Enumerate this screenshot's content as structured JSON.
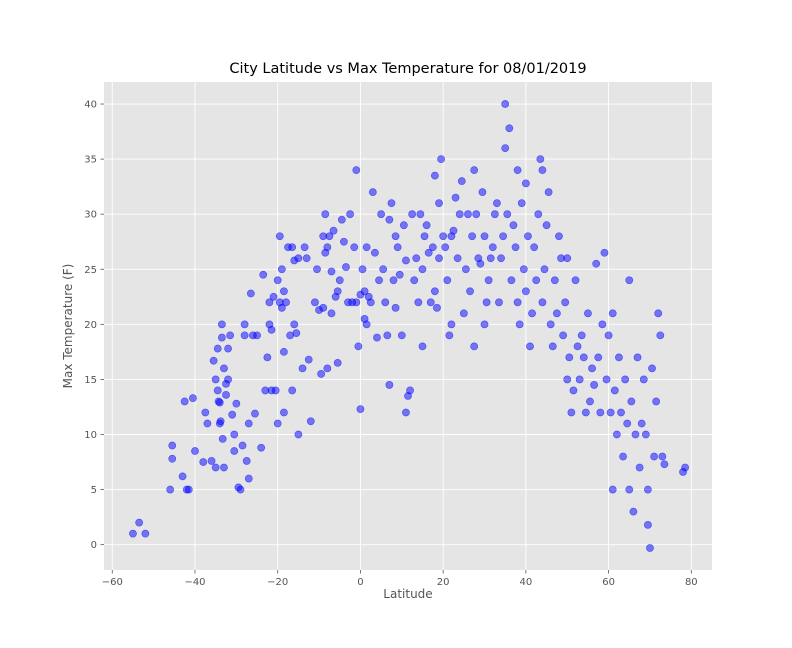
{
  "chart_data": {
    "type": "scatter",
    "title": "City Latitude vs Max Temperature for 08/01/2019",
    "xlabel": "Latitude",
    "ylabel": "Max Temperature (F)",
    "xlim": [
      -62,
      85
    ],
    "ylim": [
      -2.3,
      42
    ],
    "xticks": [
      -60,
      -40,
      -20,
      0,
      20,
      40,
      60,
      80
    ],
    "yticks": [
      0,
      5,
      10,
      15,
      20,
      25,
      30,
      35,
      40
    ],
    "grid": true,
    "legend": "none",
    "colors": {
      "point": "#0000ff",
      "background": "#e5e5e5",
      "grid": "#ffffff"
    },
    "points": [
      [
        -55,
        1
      ],
      [
        -53.5,
        2
      ],
      [
        -52,
        1
      ],
      [
        -46,
        5
      ],
      [
        -45.5,
        9
      ],
      [
        -45.5,
        7.8
      ],
      [
        -43,
        6.2
      ],
      [
        -42.5,
        13
      ],
      [
        -42,
        5
      ],
      [
        -41.5,
        5
      ],
      [
        -40.5,
        13.3
      ],
      [
        -40,
        8.5
      ],
      [
        -38,
        7.5
      ],
      [
        -37.5,
        12
      ],
      [
        -37,
        11
      ],
      [
        -36,
        7.6
      ],
      [
        -35.5,
        16.7
      ],
      [
        -35,
        15
      ],
      [
        -35,
        7
      ],
      [
        -34.5,
        17.8
      ],
      [
        -34.5,
        14
      ],
      [
        -34.3,
        13
      ],
      [
        -34,
        12.9
      ],
      [
        -34,
        11
      ],
      [
        -33.8,
        11.2
      ],
      [
        -33.5,
        18.8
      ],
      [
        -33.5,
        20
      ],
      [
        -33.3,
        9.6
      ],
      [
        -33,
        7
      ],
      [
        -33,
        16
      ],
      [
        -32.5,
        13.6
      ],
      [
        -32.5,
        14.6
      ],
      [
        -32,
        17.8
      ],
      [
        -32,
        15
      ],
      [
        -31.5,
        19
      ],
      [
        -31,
        11.8
      ],
      [
        -30.5,
        8.5
      ],
      [
        -30.5,
        10
      ],
      [
        -30,
        12.8
      ],
      [
        -29.5,
        5.2
      ],
      [
        -29,
        5
      ],
      [
        -28.5,
        9
      ],
      [
        -28,
        20
      ],
      [
        -28,
        19
      ],
      [
        -27.5,
        7.6
      ],
      [
        -27,
        11
      ],
      [
        -27,
        6
      ],
      [
        -26.5,
        22.8
      ],
      [
        -26,
        19
      ],
      [
        -25.5,
        11.9
      ],
      [
        -25,
        19
      ],
      [
        -24,
        8.8
      ],
      [
        -23.5,
        24.5
      ],
      [
        -23,
        14
      ],
      [
        -22.5,
        17
      ],
      [
        -22,
        22
      ],
      [
        -22,
        20
      ],
      [
        -21.5,
        14
      ],
      [
        -21.5,
        19.5
      ],
      [
        -21,
        22.5
      ],
      [
        -20.5,
        14
      ],
      [
        -20,
        11
      ],
      [
        -20,
        24
      ],
      [
        -19.5,
        28
      ],
      [
        -19.5,
        22
      ],
      [
        -19,
        21.5
      ],
      [
        -19,
        25
      ],
      [
        -18.5,
        17.5
      ],
      [
        -18.5,
        12
      ],
      [
        -18.5,
        23
      ],
      [
        -18,
        22
      ],
      [
        -17.5,
        27
      ],
      [
        -17,
        19
      ],
      [
        -16.5,
        14
      ],
      [
        -16.5,
        27
      ],
      [
        -16,
        25.8
      ],
      [
        -16,
        20
      ],
      [
        -15.5,
        19.2
      ],
      [
        -15,
        10
      ],
      [
        -15,
        26
      ],
      [
        -14,
        16
      ],
      [
        -13.5,
        27
      ],
      [
        -13,
        26
      ],
      [
        -12.5,
        16.8
      ],
      [
        -12,
        11.2
      ],
      [
        -11,
        22
      ],
      [
        -10.5,
        25
      ],
      [
        -10,
        21.3
      ],
      [
        -9.5,
        15.5
      ],
      [
        -9,
        21.5
      ],
      [
        -9,
        28
      ],
      [
        -8.5,
        30
      ],
      [
        -8.5,
        26.5
      ],
      [
        -8,
        27
      ],
      [
        -8,
        16
      ],
      [
        -7.5,
        28
      ],
      [
        -7,
        21
      ],
      [
        -7,
        24.8
      ],
      [
        -6.5,
        28.5
      ],
      [
        -6,
        22.5
      ],
      [
        -5.5,
        23
      ],
      [
        -5.5,
        16.5
      ],
      [
        -5,
        24
      ],
      [
        -4.5,
        29.5
      ],
      [
        -4,
        27.5
      ],
      [
        -3.5,
        25.2
      ],
      [
        -3,
        22
      ],
      [
        -2.5,
        30
      ],
      [
        -2,
        22
      ],
      [
        -1.5,
        27
      ],
      [
        -1,
        34
      ],
      [
        -1,
        22
      ],
      [
        -0.5,
        18
      ],
      [
        0,
        12.3
      ],
      [
        0,
        22.7
      ],
      [
        0.5,
        25
      ],
      [
        1,
        23
      ],
      [
        1,
        20.5
      ],
      [
        1.5,
        27
      ],
      [
        1.5,
        20
      ],
      [
        2,
        22.5
      ],
      [
        2.5,
        22
      ],
      [
        3,
        32
      ],
      [
        3.5,
        26.5
      ],
      [
        4,
        18.8
      ],
      [
        4.5,
        24
      ],
      [
        5,
        30
      ],
      [
        5.5,
        25
      ],
      [
        6,
        22
      ],
      [
        6.5,
        19
      ],
      [
        7,
        29.5
      ],
      [
        7,
        14.5
      ],
      [
        7.5,
        31
      ],
      [
        8,
        24
      ],
      [
        8.5,
        28
      ],
      [
        8.5,
        21.5
      ],
      [
        9,
        27
      ],
      [
        9.5,
        24.5
      ],
      [
        10,
        19
      ],
      [
        10.5,
        29
      ],
      [
        11,
        25.8
      ],
      [
        11,
        12
      ],
      [
        11.5,
        13.5
      ],
      [
        12,
        14
      ],
      [
        12.5,
        30
      ],
      [
        13,
        24
      ],
      [
        13.5,
        26
      ],
      [
        14,
        22
      ],
      [
        14.5,
        30
      ],
      [
        15,
        25
      ],
      [
        15,
        18
      ],
      [
        15.5,
        28
      ],
      [
        16,
        29
      ],
      [
        16.5,
        26.5
      ],
      [
        17,
        22
      ],
      [
        17.5,
        27
      ],
      [
        18,
        33.5
      ],
      [
        18,
        23
      ],
      [
        18.5,
        21.5
      ],
      [
        19,
        31
      ],
      [
        19,
        26
      ],
      [
        19.5,
        35
      ],
      [
        20,
        28
      ],
      [
        20.5,
        27
      ],
      [
        21,
        24
      ],
      [
        21.5,
        19
      ],
      [
        22,
        28
      ],
      [
        22,
        20
      ],
      [
        22.5,
        28.5
      ],
      [
        23,
        31.5
      ],
      [
        23.5,
        26
      ],
      [
        24,
        30
      ],
      [
        24.5,
        33
      ],
      [
        25,
        21
      ],
      [
        25.5,
        25
      ],
      [
        26,
        30
      ],
      [
        26.5,
        23
      ],
      [
        27,
        28
      ],
      [
        27.5,
        34
      ],
      [
        27.5,
        18
      ],
      [
        28,
        30
      ],
      [
        28.5,
        26
      ],
      [
        29,
        25.5
      ],
      [
        29.5,
        32
      ],
      [
        30,
        28
      ],
      [
        30,
        20
      ],
      [
        30.5,
        22
      ],
      [
        31,
        24
      ],
      [
        31.5,
        26
      ],
      [
        32,
        27
      ],
      [
        32.5,
        30
      ],
      [
        33,
        31
      ],
      [
        33.5,
        22
      ],
      [
        34,
        26
      ],
      [
        34.5,
        28
      ],
      [
        35,
        40
      ],
      [
        35,
        36
      ],
      [
        35.5,
        30
      ],
      [
        36,
        37.8
      ],
      [
        36.5,
        24
      ],
      [
        37,
        29
      ],
      [
        37.5,
        27
      ],
      [
        38,
        34
      ],
      [
        38,
        22
      ],
      [
        38.5,
        20
      ],
      [
        39,
        31
      ],
      [
        39.5,
        25
      ],
      [
        40,
        32.8
      ],
      [
        40,
        23
      ],
      [
        40.5,
        28
      ],
      [
        41,
        18
      ],
      [
        41.5,
        21
      ],
      [
        42,
        27
      ],
      [
        42.5,
        24
      ],
      [
        43,
        30
      ],
      [
        43.5,
        35
      ],
      [
        44,
        34
      ],
      [
        44,
        22
      ],
      [
        44.5,
        25
      ],
      [
        45,
        29
      ],
      [
        45.5,
        32
      ],
      [
        46,
        20
      ],
      [
        46.5,
        18
      ],
      [
        47,
        24
      ],
      [
        47.5,
        21
      ],
      [
        48,
        28
      ],
      [
        48.5,
        26
      ],
      [
        49,
        19
      ],
      [
        49.5,
        22
      ],
      [
        50,
        26
      ],
      [
        50,
        15
      ],
      [
        50.5,
        17
      ],
      [
        51,
        12
      ],
      [
        51.5,
        14
      ],
      [
        52,
        24
      ],
      [
        52.5,
        18
      ],
      [
        53,
        15
      ],
      [
        53.5,
        19
      ],
      [
        54,
        17
      ],
      [
        54.5,
        12
      ],
      [
        55,
        21
      ],
      [
        55.5,
        13
      ],
      [
        56,
        16
      ],
      [
        56.5,
        14.5
      ],
      [
        57,
        25.5
      ],
      [
        57.5,
        17
      ],
      [
        58,
        12
      ],
      [
        58.5,
        20
      ],
      [
        59,
        26.5
      ],
      [
        59.5,
        15
      ],
      [
        60,
        19
      ],
      [
        60.5,
        12
      ],
      [
        61,
        21
      ],
      [
        61,
        5
      ],
      [
        61.5,
        14
      ],
      [
        62,
        10
      ],
      [
        62.5,
        17
      ],
      [
        63,
        12
      ],
      [
        63.5,
        8
      ],
      [
        64,
        15
      ],
      [
        64.5,
        11
      ],
      [
        65,
        5
      ],
      [
        65,
        24
      ],
      [
        65.5,
        13
      ],
      [
        66,
        3
      ],
      [
        66.5,
        10
      ],
      [
        67,
        17
      ],
      [
        67.5,
        7
      ],
      [
        68,
        11
      ],
      [
        68.5,
        15
      ],
      [
        69,
        10
      ],
      [
        69.5,
        5
      ],
      [
        69.5,
        1.8
      ],
      [
        70,
        -0.3
      ],
      [
        70.5,
        16
      ],
      [
        71,
        8
      ],
      [
        71.5,
        13
      ],
      [
        72,
        21
      ],
      [
        72.5,
        19
      ],
      [
        73,
        8
      ],
      [
        73.5,
        7.3
      ],
      [
        78,
        6.6
      ],
      [
        78.5,
        7
      ]
    ]
  }
}
